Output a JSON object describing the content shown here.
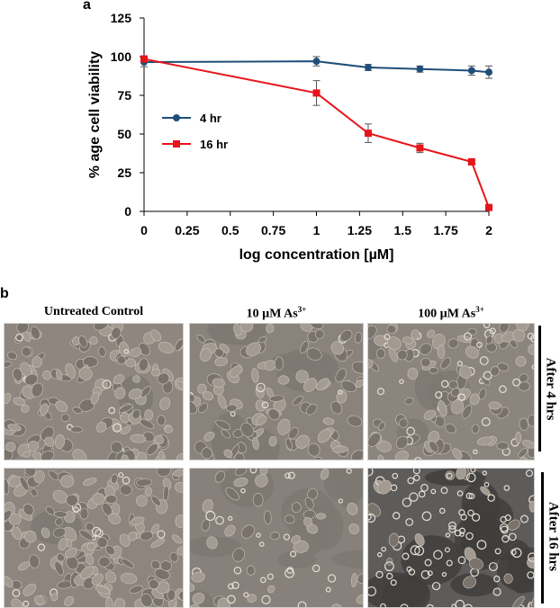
{
  "panels": {
    "a_label": "a",
    "b_label": "b"
  },
  "chart_data": {
    "type": "line",
    "title": "",
    "xlabel": "log concentration [µM]",
    "ylabel": "% age cell viability",
    "xlim": [
      0,
      2
    ],
    "ylim": [
      0,
      125
    ],
    "x_ticks": [
      "0",
      "0.25",
      "0.5",
      "0.75",
      "1",
      "1.25",
      "1.5",
      "1.75",
      "2"
    ],
    "x_tick_values": [
      0,
      0.25,
      0.5,
      0.75,
      1,
      1.25,
      1.5,
      1.75,
      2
    ],
    "y_ticks": [
      "0",
      "25",
      "50",
      "75",
      "100",
      "125"
    ],
    "y_tick_values": [
      0,
      25,
      50,
      75,
      100,
      125
    ],
    "grid": false,
    "legend_position": "left",
    "series": [
      {
        "name": "4 hr",
        "color": "#1f4e79",
        "marker": "circle",
        "x": [
          0,
          1,
          1.3,
          1.6,
          1.9,
          2
        ],
        "y": [
          96.5,
          97,
          93,
          92,
          91,
          90
        ],
        "err": [
          3,
          3,
          2,
          2,
          3,
          4
        ]
      },
      {
        "name": "16 hr",
        "color": "#e8141b",
        "marker": "square",
        "x": [
          0,
          1,
          1.3,
          1.6,
          1.9,
          2
        ],
        "y": [
          98.5,
          76.5,
          50.5,
          41,
          32,
          2.5
        ],
        "err": [
          2,
          8,
          6,
          3,
          1,
          1
        ]
      }
    ]
  },
  "micrographs": {
    "columns": [
      "Untreated Control",
      "10 µM As",
      "100 µM As"
    ],
    "superscript": "3+",
    "rows": [
      "After 4 hrs",
      "After 16 hrs"
    ]
  }
}
